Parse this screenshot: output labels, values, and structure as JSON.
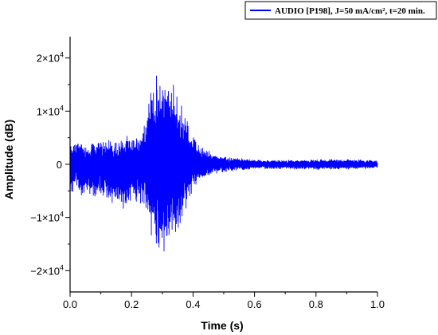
{
  "chart_data": {
    "type": "line",
    "title": "",
    "xlabel": "Time (s)",
    "ylabel": "Amplitude (dB)",
    "xlim": [
      0.0,
      1.0
    ],
    "ylim": [
      -24000,
      24000
    ],
    "x_ticks": [
      {
        "value": 0.0,
        "label": "0.0"
      },
      {
        "value": 0.2,
        "label": "0.2"
      },
      {
        "value": 0.4,
        "label": "0.4"
      },
      {
        "value": 0.6,
        "label": "0.6"
      },
      {
        "value": 0.8,
        "label": "0.8"
      },
      {
        "value": 1.0,
        "label": "1.0"
      }
    ],
    "y_ticks": [
      {
        "value": 20000,
        "label": "2×10",
        "exp": "4"
      },
      {
        "value": 10000,
        "label": "1×10",
        "exp": "4"
      },
      {
        "value": 0,
        "label": "0",
        "exp": ""
      },
      {
        "value": -10000,
        "label": "−1×10",
        "exp": "4"
      },
      {
        "value": -20000,
        "label": "−2×10",
        "exp": "4"
      }
    ],
    "grid": false,
    "legend_position": "top-right",
    "series": [
      {
        "name": "AUDIO [P198], J=50 mA/cm², t=20 min.",
        "color": "#0000ff",
        "x": [
          0.0,
          0.02,
          0.04,
          0.06,
          0.08,
          0.1,
          0.12,
          0.14,
          0.16,
          0.18,
          0.2,
          0.22,
          0.24,
          0.26,
          0.28,
          0.3,
          0.32,
          0.34,
          0.36,
          0.38,
          0.4,
          0.42,
          0.44,
          0.46,
          0.5,
          0.55,
          0.6,
          0.65,
          0.7,
          0.8,
          0.9,
          1.0
        ],
        "y_max": [
          4000,
          5000,
          4500,
          3500,
          5000,
          4500,
          5500,
          4500,
          5000,
          5500,
          5000,
          6000,
          8000,
          15000,
          17000,
          19000,
          17500,
          15000,
          13000,
          9000,
          5500,
          4000,
          3000,
          2500,
          1500,
          1200,
          900,
          800,
          800,
          900,
          1000,
          800
        ],
        "y_min": [
          -6000,
          -5000,
          -6500,
          -5500,
          -7000,
          -6500,
          -8000,
          -7500,
          -9000,
          -8500,
          -7000,
          -8000,
          -10000,
          -14500,
          -16500,
          -18500,
          -17500,
          -15000,
          -12500,
          -8500,
          -5000,
          -3500,
          -2500,
          -2000,
          -1500,
          -1200,
          -900,
          -900,
          -900,
          -1000,
          -1000,
          -800
        ]
      }
    ]
  }
}
